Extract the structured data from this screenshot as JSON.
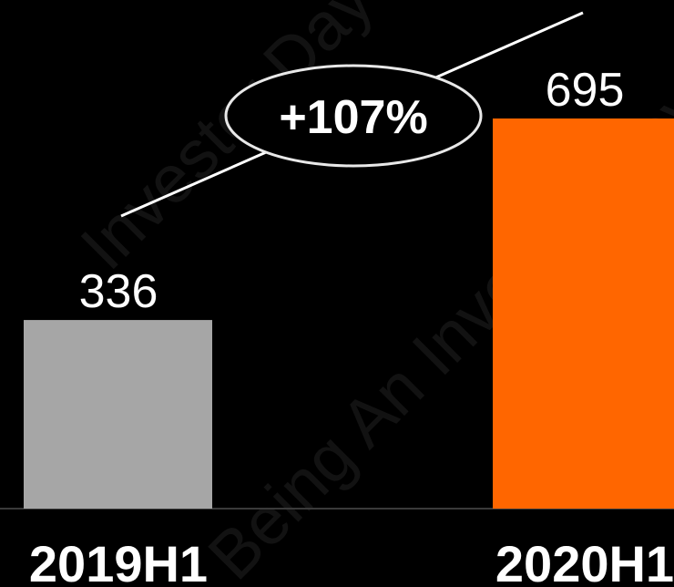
{
  "watermark": {
    "lines": [
      "Investor Day",
      "Being An Investor Day"
    ]
  },
  "colors": {
    "background": "#000000",
    "baseline": "#3a3a3a"
  },
  "chart_data": {
    "type": "bar",
    "title": "",
    "xlabel": "",
    "ylabel": "",
    "categories": [
      "2019H1",
      "2020H1"
    ],
    "values": [
      336,
      695
    ],
    "value_labels": [
      "336",
      "695"
    ],
    "bar_colors": [
      "#a6a6a6",
      "#ff6600"
    ],
    "ylim": [
      0,
      695
    ],
    "grid": false,
    "annotation": {
      "type": "growth-arrow",
      "text": "+107%",
      "from": "2019H1",
      "to": "2020H1"
    }
  }
}
